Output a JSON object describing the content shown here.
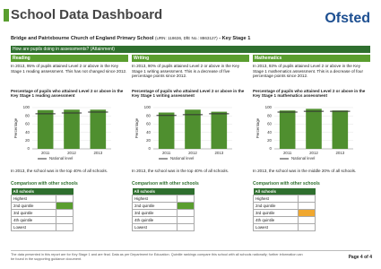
{
  "header": {
    "title": "School Data Dashboard",
    "logo": "Ofsted",
    "school": "Bridge and Patrixbourne Church of England Primary School",
    "ids": "(URN: 118636, DfE No.: 8863127)",
    "stage": "- Key Stage 1"
  },
  "section": "How are pupils doing in assessments? (Attainment)",
  "subjects": [
    {
      "name": "Reading",
      "summary": "In 2013, 95% of pupils attained Level 2 or above in the Key Stage 1 reading assessment. This has not changed since 2012.",
      "chart_data": {
        "type": "bar",
        "title": "Percentage of pupils who attained Level 2 or above in the Key Stage 1 reading assessment",
        "y_label": "Percentage",
        "categories": [
          "2011",
          "2012",
          "2013"
        ],
        "values": [
          94,
          95,
          95
        ],
        "color": "#4f8f2f",
        "national": {
          "name": "National level",
          "values": [
            85,
            87,
            89
          ],
          "color": "#333333"
        },
        "ylim": [
          0,
          100
        ],
        "yticks": [
          0,
          20,
          40,
          60,
          80,
          100
        ]
      },
      "caption": "In 2013, the school was in the top 40% of all schools.",
      "comparison": {
        "title": "Comparison with other schools",
        "header": "All schools",
        "rows": [
          "Highest",
          "2nd quintile",
          "3rd quintile",
          "4th quintile",
          "Lowest"
        ],
        "highlight": 1,
        "highlight_color": "#5a9e2f"
      }
    },
    {
      "name": "Writing",
      "summary": "In 2013, 90% of pupils attained Level 2 or above in the Key Stage 1 writing assessment. This is a decrease of five percentage points since 2012.",
      "chart_data": {
        "type": "bar",
        "title": "Percentage of pupils who attained Level 2 or above in the Key Stage 1 writing assessment",
        "y_label": "Percentage",
        "categories": [
          "2011",
          "2012",
          "2013"
        ],
        "values": [
          88,
          95,
          90
        ],
        "color": "#4f8f2f",
        "national": {
          "name": "National level",
          "values": [
            81,
            83,
            85
          ],
          "color": "#333333"
        },
        "ylim": [
          0,
          100
        ],
        "yticks": [
          0,
          20,
          40,
          60,
          80,
          100
        ]
      },
      "caption": "In 2013, the school was in the top 40% of all schools.",
      "comparison": {
        "title": "Comparison with other schools",
        "header": "All schools",
        "rows": [
          "Highest",
          "2nd quintile",
          "3rd quintile",
          "4th quintile",
          "Lowest"
        ],
        "highlight": 1,
        "highlight_color": "#5a9e2f"
      }
    },
    {
      "name": "Mathematics",
      "summary": "In 2013, 93% of pupils attained Level 2 or above in the Key Stage 1 mathematics assessment. This is a decrease of four percentage points since 2012.",
      "chart_data": {
        "type": "bar",
        "title": "Percentage of pupils who attained Level 2 or above in the Key Stage 1 mathematics assessment",
        "y_label": "Percentage",
        "categories": [
          "2011",
          "2012",
          "2013"
        ],
        "values": [
          93,
          97,
          93
        ],
        "color": "#4f8f2f",
        "national": {
          "name": "National level",
          "values": [
            89,
            91,
            91
          ],
          "color": "#333333"
        },
        "ylim": [
          0,
          100
        ],
        "yticks": [
          0,
          20,
          40,
          60,
          80,
          100
        ]
      },
      "caption": "In 2013, the school was in the middle 20% of all schools.",
      "comparison": {
        "title": "Comparison with other schools",
        "header": "All schools",
        "rows": [
          "Highest",
          "2nd quintile",
          "3rd quintile",
          "4th quintile",
          "Lowest"
        ],
        "highlight": 2,
        "highlight_color": "#f0a830"
      }
    }
  ],
  "footer": {
    "note": "The data presented in this report are for Key Stage 1 and are final. Data as per Department for Education. Quintile rankings compare this school with all schools nationally; further information can be found in the supporting guidance document.",
    "page": "Page 4 of 4"
  }
}
